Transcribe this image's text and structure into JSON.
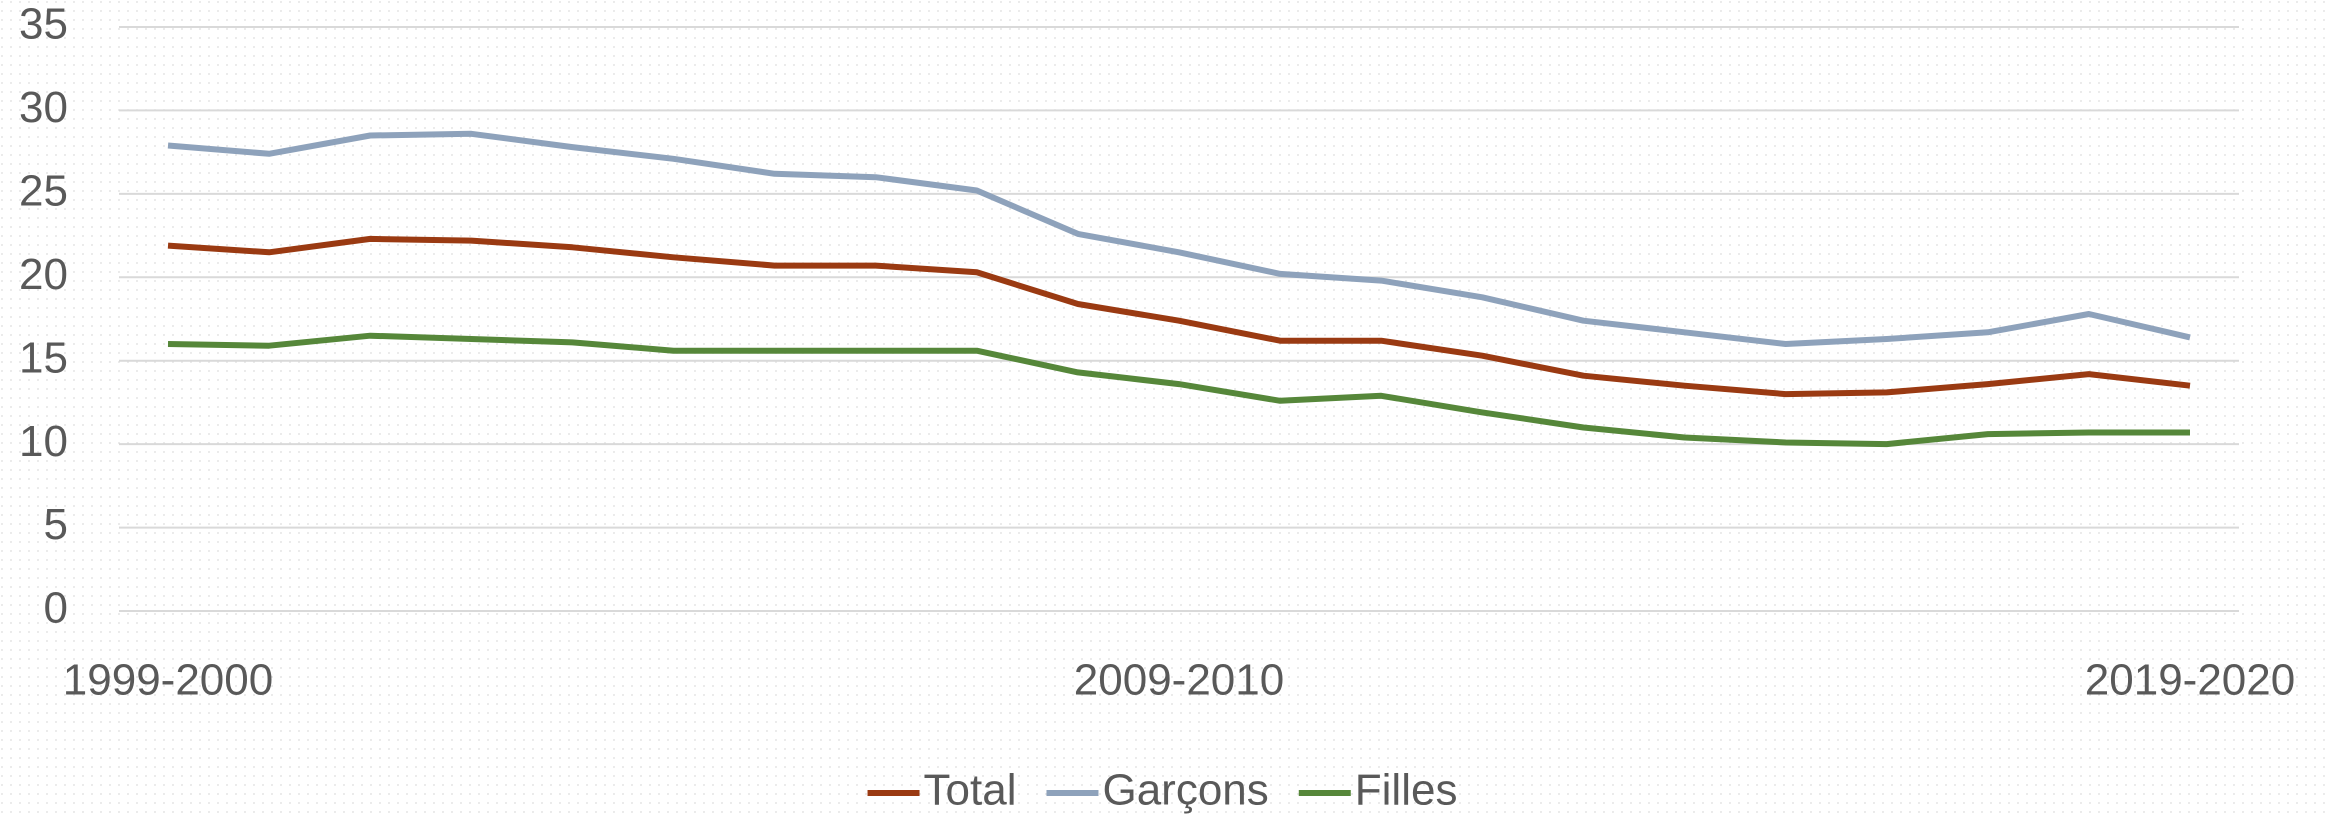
{
  "chart_data": {
    "type": "line",
    "categories": [
      "1999-2000",
      null,
      null,
      null,
      null,
      null,
      null,
      null,
      null,
      null,
      "2009-2010",
      null,
      null,
      null,
      null,
      null,
      null,
      null,
      null,
      null,
      "2019-2020"
    ],
    "series": [
      {
        "name": "Total",
        "color": "#9a3a12",
        "values": [
          21.9,
          21.5,
          22.3,
          22.2,
          21.8,
          21.2,
          20.7,
          20.7,
          20.3,
          18.4,
          17.4,
          16.2,
          16.2,
          15.3,
          14.1,
          13.5,
          13.0,
          13.1,
          13.6,
          14.2,
          13.5
        ]
      },
      {
        "name": "Garçons",
        "color": "#8ea2bb",
        "values": [
          27.9,
          27.4,
          28.5,
          28.6,
          27.8,
          27.1,
          26.2,
          26.0,
          25.2,
          22.6,
          21.5,
          20.2,
          19.8,
          18.8,
          17.4,
          16.7,
          16.0,
          16.3,
          16.7,
          17.8,
          16.4
        ]
      },
      {
        "name": "Filles",
        "color": "#56873a",
        "values": [
          16.0,
          15.9,
          16.5,
          16.3,
          16.1,
          15.6,
          15.6,
          15.6,
          15.6,
          14.3,
          13.6,
          12.6,
          12.9,
          11.9,
          11.0,
          10.4,
          10.1,
          10.0,
          10.6,
          10.7,
          10.7
        ]
      }
    ],
    "ylim": [
      0,
      35
    ],
    "yticks": [
      0,
      5,
      10,
      15,
      20,
      25,
      30,
      35
    ],
    "grid": true,
    "legend": "bottom"
  }
}
